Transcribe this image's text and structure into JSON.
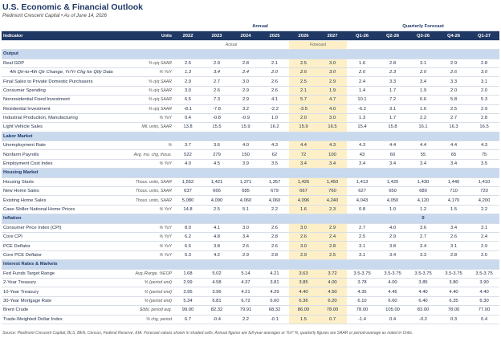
{
  "header": {
    "title": "U.S. Economic & Financial Outlook",
    "subtitle": "Piedmont Crescent Capital • As of June 14, 2026"
  },
  "table": {
    "group_headers": {
      "annual": "Annual",
      "quarterly": "Quarterly Forecast"
    },
    "columns": [
      "Indicator",
      "Units",
      "2022",
      "2023",
      "2024",
      "2025",
      "2026",
      "2027",
      "Q1-26",
      "Q2-26",
      "Q3-26",
      "Q4-26",
      "Q1-27"
    ],
    "subheaders": {
      "actual": "Actual",
      "forecast": "Forecast"
    },
    "sections": [
      {
        "title": "Output",
        "rows": [
          {
            "label": "Real GDP",
            "units": "% q/q SAAR",
            "values": [
              "2.5",
              "2.9",
              "2.8",
              "2.1",
              "2.5",
              "3.0",
              "1.6",
              "2.8",
              "3.1",
              "2.9",
              "2.8"
            ]
          },
          {
            "label": "4th Qtr-to-4th Qtr Change, Yr/Yr Chg for Qtly Data",
            "units": "% YoY",
            "italic": true,
            "values": [
              "1.3",
              "3.4",
              "2.4",
              "2.0",
              "2.6",
              "3.0",
              "2.6",
              "2.3",
              "2.0",
              "2.6",
              "3.0"
            ]
          },
          {
            "label": "Final Sales to Private Domestic Purchasers",
            "units": "% q/q SAAR",
            "values": [
              "2.9",
              "2.7",
              "3.0",
              "2.6",
              "2.5",
              "2.9",
              "2.4",
              "3.3",
              "3.4",
              "3.3",
              "3.1"
            ]
          },
          {
            "label": "Consumer Spending",
            "units": "% q/q SAAR",
            "values": [
              "3.0",
              "2.6",
              "2.9",
              "2.6",
              "2.1",
              "1.9",
              "1.4",
              "1.7",
              "1.9",
              "2.0",
              "2.0"
            ]
          },
          {
            "label": "Nonresidential Fixed Investment",
            "units": "% q/q SAAR",
            "values": [
              "6.5",
              "7.3",
              "2.9",
              "4.1",
              "5.7",
              "4.7",
              "10.1",
              "7.2",
              "6.6",
              "5.8",
              "5.3"
            ]
          },
          {
            "label": "Residential Investment",
            "units": "% q/q SAAR",
            "values": [
              "-8.1",
              "-7.8",
              "3.2",
              "-2.2",
              "-3.5",
              "4.0",
              "-6.2",
              "3.1",
              "1.6",
              "2.5",
              "2.9"
            ]
          },
          {
            "label": "Industrial Production, Manufacturing",
            "units": "% YoY",
            "values": [
              "0.4",
              "-0.8",
              "-0.9",
              "1.0",
              "2.0",
              "3.0",
              "1.3",
              "1.7",
              "2.2",
              "2.7",
              "2.8"
            ]
          },
          {
            "label": "Light Vehicle Sales",
            "units": "Mil. units, SAAR",
            "values": [
              "13.8",
              "15.5",
              "15.9",
              "16.2",
              "15.9",
              "16.5",
              "15.4",
              "15.8",
              "16.1",
              "16.3",
              "16.5"
            ]
          }
        ]
      },
      {
        "title": "Labor Market",
        "rows": [
          {
            "label": "Unemployment Rate",
            "units": "%",
            "values": [
              "3.7",
              "3.6",
              "4.0",
              "4.3",
              "4.4",
              "4.3",
              "4.3",
              "4.4",
              "4.4",
              "4.4",
              "4.3"
            ]
          },
          {
            "label": "Nonfarm Payrolls",
            "units": "Avg. mo. chg, thous.",
            "values": [
              "522",
              "279",
              "150",
              "62",
              "72",
              "100",
              "43",
              "60",
              "55",
              "65",
              "75"
            ]
          },
          {
            "label": "Employment Cost Index",
            "units": "% YoY",
            "values": [
              "4.0",
              "4.5",
              "3.9",
              "3.5",
              "3.4",
              "3.4",
              "3.4",
              "3.4",
              "3.4",
              "3.4",
              "3.5"
            ]
          }
        ]
      },
      {
        "title": "Housing Market",
        "rows": [
          {
            "label": "Housing Starts",
            "units": "Thous. units, SAAR",
            "values": [
              "1,552",
              "1,421",
              "1,371",
              "1,357",
              "1,426",
              "1,450",
              "1,413",
              "1,420",
              "1,430",
              "1,440",
              "1,410"
            ]
          },
          {
            "label": "New Home Sales",
            "units": "Thous. units, SAAR",
            "values": [
              "637",
              "666",
              "685",
              "679",
              "667",
              "760",
              "627",
              "650",
              "680",
              "710",
              "720"
            ]
          },
          {
            "label": "Existing Home Sales",
            "units": "Thous. units, SAAR",
            "values": [
              "5,080",
              "4,090",
              "4,060",
              "4,060",
              "4,096",
              "4,240",
              "4,043",
              "4,050",
              "4,120",
              "4,170",
              "4,200"
            ]
          },
          {
            "label": "Case-Shiller National Home Prices",
            "units": "% YoY",
            "values": [
              "14.8",
              "2.5",
              "5.1",
              "2.2",
              "1.6",
              "2.3",
              "0.8",
              "1.0",
              "1.2",
              "1.5",
              "2.2"
            ]
          }
        ]
      },
      {
        "title": "Inflation",
        "q3_marker": "0",
        "rows": [
          {
            "label": "Consumer Price Index (CPI)",
            "units": "% YoY",
            "values": [
              "8.0",
              "4.1",
              "3.0",
              "2.6",
              "3.0",
              "2.9",
              "2.7",
              "4.0",
              "3.6",
              "3.4",
              "3.1"
            ]
          },
          {
            "label": "Core CPI",
            "units": "% YoY",
            "values": [
              "6.2",
              "4.8",
              "3.4",
              "2.8",
              "2.6",
              "2.4",
              "2.5",
              "2.9",
              "2.7",
              "2.6",
              "2.4"
            ]
          },
          {
            "label": "PCE Deflator",
            "units": "% YoY",
            "values": [
              "6.5",
              "3.8",
              "2.6",
              "2.6",
              "3.0",
              "2.8",
              "3.1",
              "3.8",
              "3.4",
              "3.1",
              "2.9"
            ]
          },
          {
            "label": "Core PCE Deflator",
            "units": "% YoY",
            "values": [
              "5.3",
              "4.2",
              "2.9",
              "2.8",
              "2.9",
              "2.5",
              "3.1",
              "3.4",
              "3.3",
              "2.8",
              "2.6"
            ]
          }
        ]
      },
      {
        "title": "Interest Rates & Markets",
        "rows": [
          {
            "label": "Fed Funds Target Range",
            "units": "Avg./Range, %EOP",
            "values": [
              "1.68",
              "5.02",
              "5.14",
              "4.21",
              "3.63",
              "3.72",
              "3.5-3.75",
              "3.5-3.75",
              "3.5-3.75",
              "3.5-3.75",
              "3.5-3.75"
            ]
          },
          {
            "label": "2-Year Treasury",
            "units": "% (period end)",
            "values": [
              "2.99",
              "4.58",
              "4.37",
              "3.81",
              "3.85",
              "4.00",
              "3.78",
              "4.00",
              "3.85",
              "3.80",
              "3.90"
            ]
          },
          {
            "label": "10-Year Treasury",
            "units": "% (period end)",
            "values": [
              "2.95",
              "3.96",
              "4.21",
              "4.29",
              "4.40",
              "4.50",
              "4.35",
              "4.45",
              "4.40",
              "4.40",
              "4.40"
            ]
          },
          {
            "label": "30-Year Mortgage Rate",
            "units": "% (period end)",
            "values": [
              "5.34",
              "6.81",
              "6.72",
              "6.60",
              "6.36",
              "6.20",
              "6.10",
              "6.60",
              "6.40",
              "6.35",
              "6.30"
            ]
          },
          {
            "label": "Brent Crude",
            "units": "$/bbl, period avg.",
            "values": [
              "99.00",
              "82.32",
              "79.91",
              "68.32",
              "86.00",
              "78.00",
              "78.00",
              "105.00",
              "83.00",
              "78.00",
              "77.00"
            ]
          },
          {
            "label": "Trade-Weighted Dollar Index",
            "units": "% chg, period",
            "values": [
              "6.7",
              "-0.4",
              "2.2",
              "-0.1",
              "1.5",
              "0.7",
              "-1.4",
              "0.4",
              "-0.2",
              "0.3",
              "0.4"
            ]
          }
        ]
      }
    ]
  },
  "footer": "Source: Piedmont Crescent Capital, BLS, BEA, Census, Federal Reserve, EIA. Forecast values shown in shaded cells. Annual figures are full-year averages or YoY %; quarterly figures are SAAR or period-average as noted in Units."
}
